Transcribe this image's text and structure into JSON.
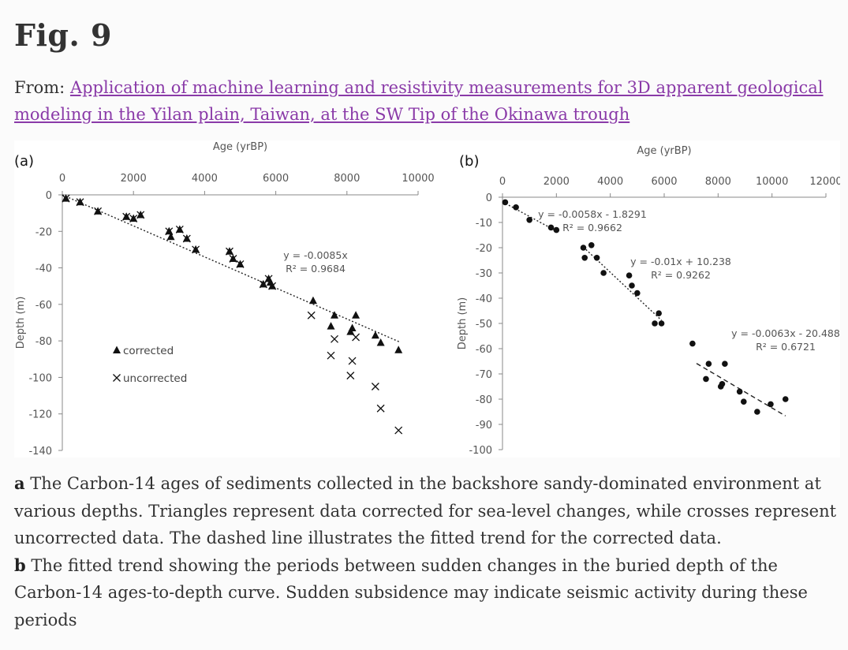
{
  "title": "Fig. 9",
  "from_label": "From:",
  "article_link": "Application of machine learning and resistivity measurements for 3D apparent geological modeling in the Yilan plain, Taiwan, at the SW Tip of the Okinawa trough",
  "caption": {
    "a_label": "a",
    "a_text": " The Carbon-14 ages of sediments collected in the backshore sandy-dominated environment at various depths. Triangles represent data corrected for sea-level changes, while crosses represent uncorrected data. The dashed line illustrates the fitted trend for the corrected data.",
    "b_label": "b",
    "b_text": " The fitted trend showing the periods between sudden changes in the buried depth of the Carbon-14 ages-to-depth curve. Sudden subsidence may indicate seismic activity during these periods"
  },
  "chart_data": [
    {
      "panel": "(a)",
      "type": "scatter",
      "xlabel": "Age (yrBP)",
      "ylabel": "Depth (m)",
      "xlim": [
        0,
        10000
      ],
      "ylim": [
        -140,
        0
      ],
      "xticks": [
        0,
        2000,
        4000,
        6000,
        8000,
        10000
      ],
      "yticks": [
        0,
        -20,
        -40,
        -60,
        -80,
        -100,
        -120,
        -140
      ],
      "grid": false,
      "legend": [
        "corrected",
        "uncorrected"
      ],
      "series": [
        {
          "name": "corrected",
          "marker": "triangle",
          "points": [
            [
              100,
              -2
            ],
            [
              500,
              -4
            ],
            [
              1000,
              -9
            ],
            [
              1800,
              -12
            ],
            [
              2000,
              -13
            ],
            [
              2200,
              -11
            ],
            [
              3000,
              -20
            ],
            [
              3050,
              -23
            ],
            [
              3300,
              -19
            ],
            [
              3500,
              -24
            ],
            [
              3750,
              -30
            ],
            [
              4700,
              -31
            ],
            [
              4800,
              -35
            ],
            [
              5000,
              -38
            ],
            [
              5650,
              -49
            ],
            [
              5800,
              -46
            ],
            [
              5850,
              -48
            ],
            [
              5900,
              -50
            ],
            [
              7050,
              -58
            ],
            [
              7550,
              -72
            ],
            [
              7650,
              -66
            ],
            [
              8100,
              -75
            ],
            [
              8150,
              -73
            ],
            [
              8250,
              -66
            ],
            [
              8800,
              -77
            ],
            [
              8950,
              -81
            ],
            [
              9450,
              -85
            ]
          ]
        },
        {
          "name": "uncorrected",
          "marker": "cross",
          "points": [
            [
              100,
              -2
            ],
            [
              500,
              -4
            ],
            [
              1000,
              -9
            ],
            [
              1800,
              -12
            ],
            [
              2000,
              -13
            ],
            [
              2200,
              -11
            ],
            [
              3000,
              -20
            ],
            [
              3300,
              -19
            ],
            [
              3500,
              -24
            ],
            [
              3750,
              -30
            ],
            [
              4700,
              -31
            ],
            [
              4800,
              -35
            ],
            [
              5000,
              -38
            ],
            [
              5650,
              -49
            ],
            [
              5800,
              -46
            ],
            [
              5900,
              -50
            ],
            [
              7000,
              -66
            ],
            [
              7550,
              -88
            ],
            [
              7650,
              -79
            ],
            [
              8100,
              -99
            ],
            [
              8150,
              -91
            ],
            [
              8250,
              -78
            ],
            [
              8800,
              -105
            ],
            [
              8950,
              -117
            ],
            [
              9450,
              -129
            ]
          ]
        }
      ],
      "fits": [
        {
          "style": "dotted",
          "x": [
            0,
            9500
          ],
          "slope": -0.0085,
          "intercept": 0,
          "equation": "y = -0.0085x",
          "r2": "R² = 0.9684"
        }
      ]
    },
    {
      "panel": "(b)",
      "type": "scatter",
      "xlabel": "Age (yrBP)",
      "ylabel": "Depth (m)",
      "xlim": [
        0,
        12000
      ],
      "ylim": [
        -100,
        0
      ],
      "xticks": [
        0,
        2000,
        4000,
        6000,
        8000,
        10000,
        12000
      ],
      "yticks": [
        0,
        -10,
        -20,
        -30,
        -40,
        -50,
        -60,
        -70,
        -80,
        -90,
        -100
      ],
      "grid": false,
      "series": [
        {
          "name": "corrected",
          "marker": "circle",
          "points": [
            [
              100,
              -2
            ],
            [
              500,
              -4
            ],
            [
              1000,
              -9
            ],
            [
              1800,
              -12
            ],
            [
              2000,
              -13
            ],
            [
              3000,
              -20
            ],
            [
              3050,
              -24
            ],
            [
              3300,
              -19
            ],
            [
              3500,
              -24
            ],
            [
              3750,
              -30
            ],
            [
              4700,
              -31
            ],
            [
              4800,
              -35
            ],
            [
              5000,
              -38
            ],
            [
              5650,
              -50
            ],
            [
              5800,
              -46
            ],
            [
              5900,
              -50
            ],
            [
              7050,
              -58
            ],
            [
              7550,
              -72
            ],
            [
              7650,
              -66
            ],
            [
              8100,
              -75
            ],
            [
              8150,
              -74
            ],
            [
              8250,
              -66
            ],
            [
              8800,
              -77
            ],
            [
              8950,
              -81
            ],
            [
              9450,
              -85
            ],
            [
              9950,
              -82
            ],
            [
              10500,
              -80
            ]
          ]
        }
      ],
      "fits": [
        {
          "style": "dotted",
          "x": [
            0,
            2000
          ],
          "slope": -0.0058,
          "intercept": -1.8291,
          "equation": "y = -0.0058x - 1.8291",
          "r2": "R² = 0.9662"
        },
        {
          "style": "dotted",
          "x": [
            3000,
            5900
          ],
          "slope": -0.01,
          "intercept": 10.238,
          "equation": "y = -0.01x + 10.238",
          "r2": "R² = 0.9262"
        },
        {
          "style": "dashed",
          "x": [
            7200,
            10500
          ],
          "slope": -0.0063,
          "intercept": -20.488,
          "equation": "y = -0.0063x - 20.488",
          "r2": "R² = 0.6721"
        }
      ]
    }
  ]
}
